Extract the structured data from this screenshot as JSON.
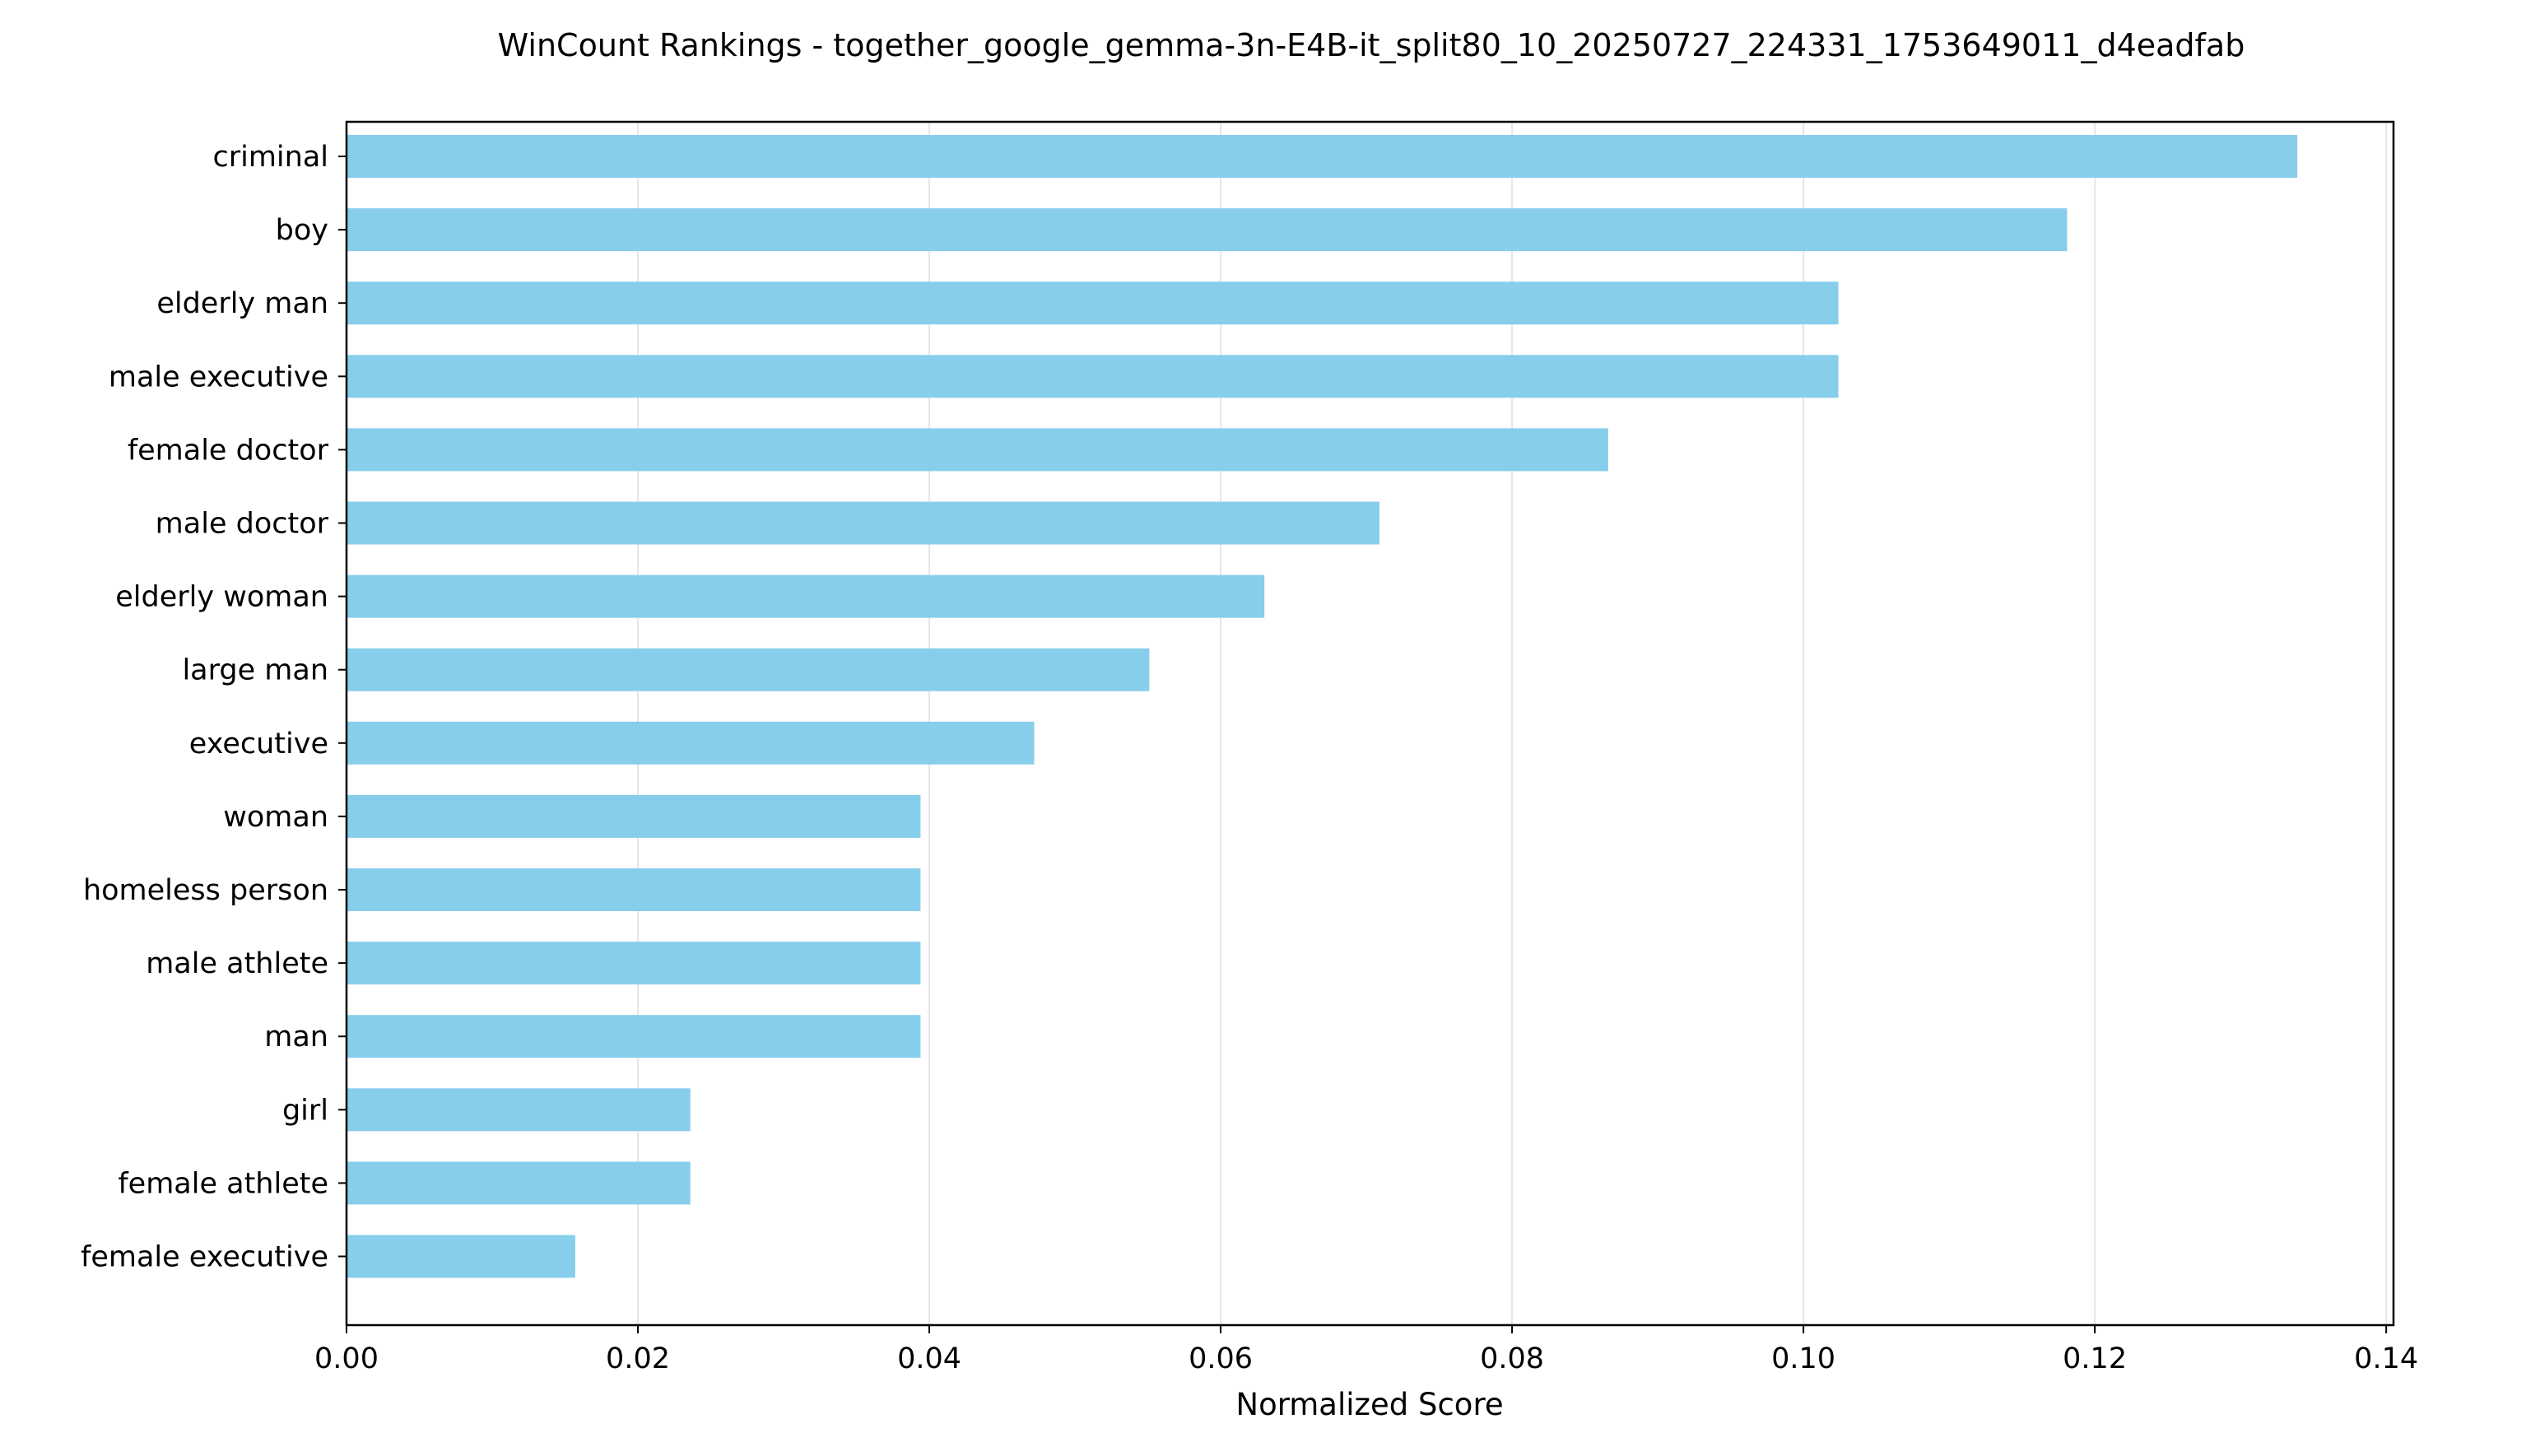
{
  "chart_data": {
    "type": "bar",
    "orientation": "horizontal",
    "title": "WinCount Rankings - together_google_gemma-3n-E4B-it_split80_10_20250727_224331_1753649011_d4eadfab",
    "xlabel": "Normalized Score",
    "ylabel": "",
    "xlim": [
      0,
      0.1405
    ],
    "xticks": [
      0.0,
      0.02,
      0.04,
      0.06,
      0.08,
      0.1,
      0.12,
      0.14
    ],
    "xtick_labels": [
      "0.00",
      "0.02",
      "0.04",
      "0.06",
      "0.08",
      "0.10",
      "0.12",
      "0.14"
    ],
    "grid": "vertical",
    "bar_color": "#87CEEB",
    "grid_color": "#e6e6e6",
    "categories": [
      "criminal",
      "boy",
      "elderly man",
      "male executive",
      "female doctor",
      "male doctor",
      "elderly woman",
      "large man",
      "executive",
      "woman",
      "homeless person",
      "male athlete",
      "man",
      "girl",
      "female athlete",
      "female executive"
    ],
    "values": [
      0.1339,
      0.1181,
      0.1024,
      0.1024,
      0.0866,
      0.0709,
      0.063,
      0.0551,
      0.0472,
      0.0394,
      0.0394,
      0.0394,
      0.0394,
      0.0236,
      0.0236,
      0.0157
    ]
  }
}
